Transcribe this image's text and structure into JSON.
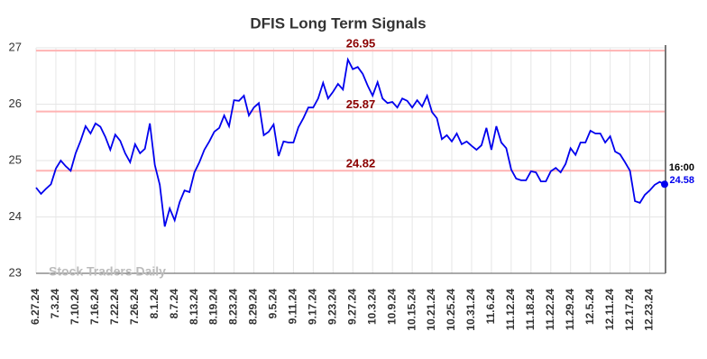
{
  "chart_data": {
    "type": "line",
    "title": "DFIS Long Term Signals",
    "categories": [
      "6.27.24",
      null,
      null,
      null,
      "7.3.24",
      null,
      null,
      null,
      "7.10.24",
      null,
      null,
      null,
      "7.16.24",
      null,
      null,
      null,
      "7.22.24",
      null,
      null,
      null,
      "7.26.24",
      null,
      null,
      null,
      "8.1.24",
      null,
      null,
      null,
      "8.7.24",
      null,
      null,
      null,
      "8.13.24",
      null,
      null,
      null,
      "8.19.24",
      null,
      null,
      null,
      "8.23.24",
      null,
      null,
      null,
      "8.29.24",
      null,
      null,
      null,
      "9.5.24",
      null,
      null,
      null,
      "9.11.24",
      null,
      null,
      null,
      "9.17.24",
      null,
      null,
      null,
      "9.23.24",
      null,
      null,
      null,
      "9.27.24",
      null,
      null,
      null,
      "10.3.24",
      null,
      null,
      null,
      "10.9.24",
      null,
      null,
      null,
      "10.15.24",
      null,
      null,
      null,
      "10.21.24",
      null,
      null,
      null,
      "10.25.24",
      null,
      null,
      null,
      "10.31.24",
      null,
      null,
      null,
      "11.6.24",
      null,
      null,
      null,
      "11.12.24",
      null,
      null,
      null,
      "11.18.24",
      null,
      null,
      null,
      "11.22.24",
      null,
      null,
      null,
      "11.29.24",
      null,
      null,
      null,
      "12.5.24",
      null,
      null,
      null,
      "12.11.24",
      null,
      null,
      null,
      "12.17.24",
      null,
      null,
      null,
      "12.23.24",
      null,
      null,
      null
    ],
    "values": [
      24.52,
      24.41,
      24.5,
      24.58,
      24.86,
      25.0,
      24.9,
      24.82,
      25.13,
      25.35,
      25.61,
      25.48,
      25.66,
      25.6,
      25.42,
      25.19,
      25.46,
      25.35,
      25.13,
      24.97,
      25.29,
      25.13,
      25.21,
      25.66,
      24.92,
      24.57,
      23.83,
      24.15,
      23.94,
      24.26,
      24.47,
      24.44,
      24.79,
      24.97,
      25.19,
      25.34,
      25.51,
      25.58,
      25.8,
      25.61,
      26.07,
      26.06,
      26.15,
      25.8,
      25.94,
      26.02,
      25.45,
      25.51,
      25.64,
      25.08,
      25.34,
      25.32,
      25.32,
      25.59,
      25.75,
      25.94,
      25.94,
      26.1,
      26.38,
      26.1,
      26.22,
      26.36,
      26.26,
      26.79,
      26.62,
      26.66,
      26.54,
      26.33,
      26.15,
      26.39,
      26.1,
      26.02,
      26.04,
      25.94,
      26.1,
      26.06,
      25.94,
      26.07,
      25.96,
      26.15,
      25.86,
      25.75,
      25.38,
      25.45,
      25.34,
      25.48,
      25.29,
      25.34,
      25.26,
      25.19,
      25.27,
      25.58,
      25.19,
      25.61,
      25.32,
      25.22,
      24.84,
      24.68,
      24.65,
      24.65,
      24.81,
      24.79,
      24.63,
      24.63,
      24.81,
      24.87,
      24.79,
      24.94,
      25.22,
      25.1,
      25.32,
      25.32,
      25.53,
      25.48,
      25.48,
      25.32,
      25.43,
      25.16,
      25.11,
      24.97,
      24.82,
      24.28,
      24.25,
      24.39,
      24.47,
      24.57,
      24.62,
      24.58
    ],
    "color": "#0000ee",
    "ylim": [
      23,
      27
    ],
    "yticks": [
      23,
      24,
      25,
      26,
      27
    ],
    "grid": true,
    "hlines": [
      26.95,
      25.87,
      24.82
    ],
    "hline_color": "#ffb3b3",
    "hline_label_color": "#8b0000",
    "last_time": "16:00",
    "watermark": "Stock Traders Daily"
  }
}
